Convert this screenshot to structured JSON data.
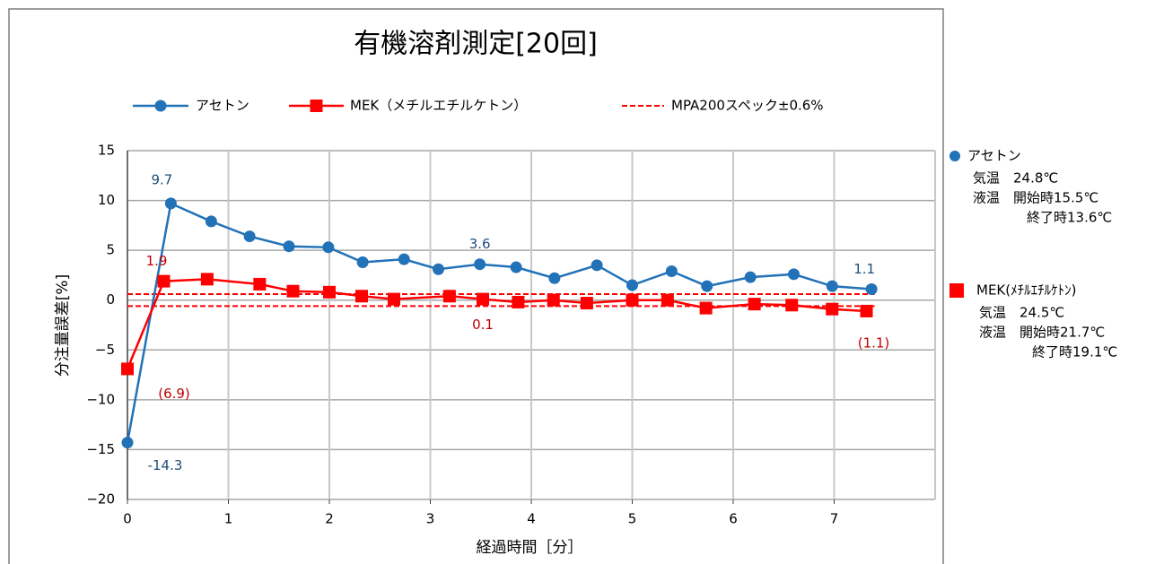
{
  "chart_data": {
    "type": "line",
    "title": "有機溶剤測定[20回]",
    "x_label": "経過時間［分］",
    "y_label": "分注量誤差[%]",
    "xlim": [
      0,
      8
    ],
    "xticks": [
      0,
      1,
      2,
      3,
      4,
      5,
      6,
      7
    ],
    "ylim": [
      -20,
      15
    ],
    "yticks": [
      {
        "value": -20,
        "label": "−20"
      },
      {
        "value": -15,
        "label": "−15"
      },
      {
        "value": -10,
        "label": "−10"
      },
      {
        "value": -5,
        "label": "−5"
      },
      0,
      5,
      10,
      15
    ],
    "grid": true,
    "series": [
      {
        "name": "アセトン",
        "color": "#2272b8",
        "marker": "circle",
        "x": [
          0,
          0.43,
          0.83,
          1.21,
          1.6,
          1.99,
          2.33,
          2.74,
          3.08,
          3.49,
          3.85,
          4.23,
          4.65,
          5.0,
          5.39,
          5.74,
          6.17,
          6.6,
          6.98,
          7.37
        ],
        "values": [
          -14.3,
          9.7,
          7.9,
          6.4,
          5.4,
          5.3,
          3.8,
          4.1,
          3.1,
          3.6,
          3.3,
          2.2,
          3.5,
          1.5,
          2.9,
          1.4,
          2.3,
          2.6,
          1.4,
          1.1
        ],
        "value_labels": [
          "-14.3",
          "9.7",
          null,
          null,
          null,
          null,
          null,
          null,
          null,
          "3.6",
          null,
          null,
          null,
          null,
          null,
          null,
          null,
          null,
          null,
          "1.1"
        ]
      },
      {
        "name": "MEK（メチルエチルケトン）",
        "color": "#ff0000",
        "marker": "square",
        "x": [
          0,
          0.36,
          0.79,
          1.31,
          1.64,
          2.0,
          2.32,
          2.64,
          3.19,
          3.52,
          3.87,
          4.22,
          4.55,
          5.0,
          5.35,
          5.73,
          6.21,
          6.58,
          6.98,
          7.32
        ],
        "values": [
          -6.9,
          1.9,
          2.1,
          1.6,
          0.9,
          0.8,
          0.4,
          0.1,
          0.4,
          0.1,
          -0.2,
          0.0,
          -0.3,
          0.0,
          0.0,
          -0.8,
          -0.4,
          -0.5,
          -0.9,
          -1.1
        ],
        "value_labels": [
          "(6.9)",
          "1.9",
          null,
          null,
          null,
          null,
          null,
          null,
          null,
          "0.1",
          null,
          null,
          null,
          null,
          null,
          null,
          null,
          null,
          null,
          "(1.1)"
        ]
      }
    ],
    "spec_band": {
      "name": "MPA200スペック±0.6%",
      "color": "#ff0000",
      "x": [
        0,
        7.4
      ],
      "upper": [
        0.6,
        0.6
      ],
      "lower": [
        -0.6,
        -0.6
      ]
    }
  },
  "side_notes": [
    {
      "name": "アセトン",
      "lines": [
        "気温　24.8℃",
        "液温　開始時15.5℃",
        "終了時13.6℃"
      ]
    },
    {
      "name": "MEK(ﾒﾁﾙｴﾁﾙｹﾄﾝ)",
      "lines": [
        "気温　24.5℃",
        "液温　開始時21.7℃",
        "終了時19.1℃"
      ]
    }
  ]
}
